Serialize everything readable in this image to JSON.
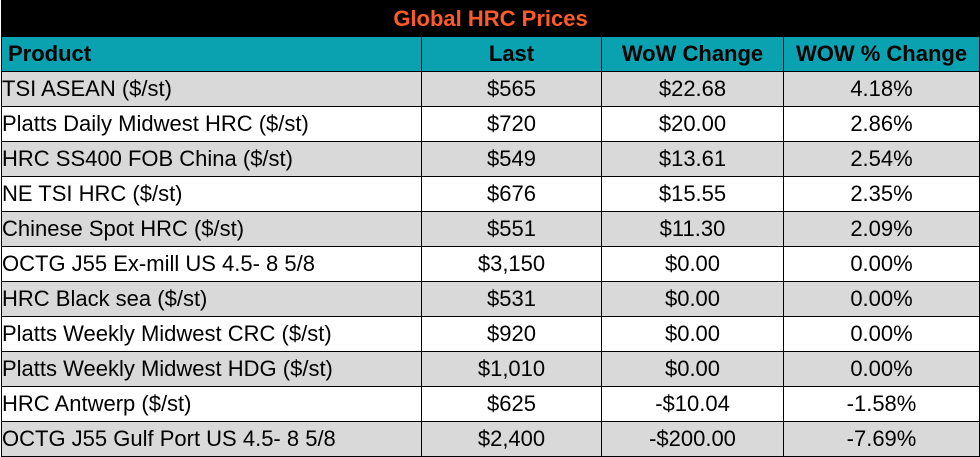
{
  "title": "Global HRC Prices",
  "colors": {
    "title_bg": "#000000",
    "title_text": "#ff5a2a",
    "header_bg": "#0aa1b1",
    "shaded_row": "#d9d9d9",
    "plain_row": "#ffffff"
  },
  "headers": {
    "product": "Product",
    "last": "Last",
    "wow_change": "WoW Change",
    "wow_pct_change": "WOW % Change"
  },
  "rows": [
    {
      "product": "TSI ASEAN ($/st)",
      "last": "$565",
      "wow_change": "$22.68",
      "wow_pct": "4.18%"
    },
    {
      "product": "Platts Daily Midwest HRC ($/st)",
      "last": "$720",
      "wow_change": "$20.00",
      "wow_pct": "2.86%"
    },
    {
      "product": "HRC SS400 FOB China ($/st)",
      "last": "$549",
      "wow_change": "$13.61",
      "wow_pct": "2.54%"
    },
    {
      "product": "NE TSI HRC ($/st)",
      "last": "$676",
      "wow_change": "$15.55",
      "wow_pct": "2.35%"
    },
    {
      "product": "Chinese Spot HRC ($/st)",
      "last": "$551",
      "wow_change": "$11.30",
      "wow_pct": "2.09%"
    },
    {
      "product": "OCTG J55 Ex-mill US 4.5- 8 5/8",
      "last": "$3,150",
      "wow_change": "$0.00",
      "wow_pct": "0.00%"
    },
    {
      "product": "HRC Black sea ($/st)",
      "last": "$531",
      "wow_change": "$0.00",
      "wow_pct": "0.00%"
    },
    {
      "product": "Platts Weekly Midwest CRC ($/st)",
      "last": "$920",
      "wow_change": "$0.00",
      "wow_pct": "0.00%"
    },
    {
      "product": "Platts Weekly Midwest HDG ($/st)",
      "last": "$1,010",
      "wow_change": "$0.00",
      "wow_pct": "0.00%"
    },
    {
      "product": "HRC Antwerp ($/st)",
      "last": "$625",
      "wow_change": "-$10.04",
      "wow_pct": "-1.58%"
    },
    {
      "product": "OCTG J55 Gulf Port US 4.5- 8 5/8",
      "last": "$2,400",
      "wow_change": "-$200.00",
      "wow_pct": "-7.69%"
    }
  ]
}
